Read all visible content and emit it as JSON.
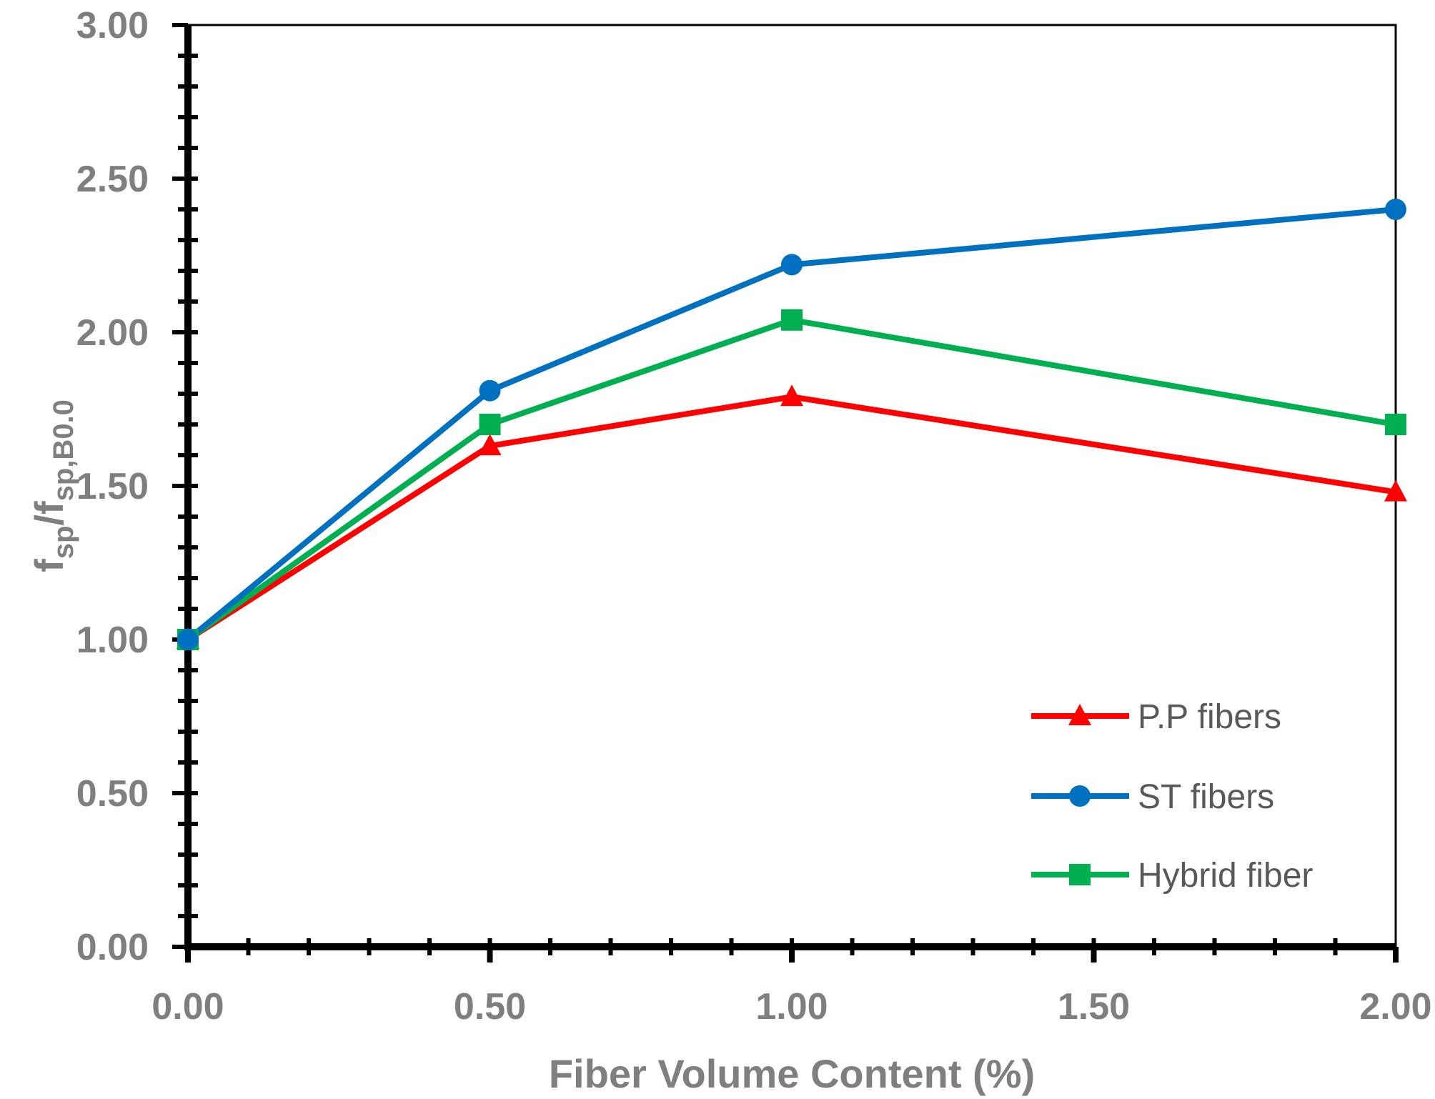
{
  "chart_data": {
    "type": "line",
    "categories": [
      "0.00",
      "0.50",
      "1.00",
      "1.50",
      "2.00"
    ],
    "x": [
      0.0,
      0.5,
      1.0,
      2.0
    ],
    "series": [
      {
        "name": "P.P fibers",
        "values": [
          1.0,
          1.63,
          1.79,
          1.48
        ],
        "color": "#ff0000",
        "marker": "triangle"
      },
      {
        "name": "ST fibers",
        "values": [
          1.0,
          1.81,
          2.22,
          2.4
        ],
        "color": "#0070c0",
        "marker": "circle"
      },
      {
        "name": "Hybrid fiber",
        "values": [
          1.0,
          1.7,
          2.04,
          1.7
        ],
        "color": "#00b050",
        "marker": "square"
      }
    ],
    "yticks": [
      "0.00",
      "0.50",
      "1.00",
      "1.50",
      "2.00",
      "2.50",
      "3.00"
    ],
    "ylim": [
      0,
      3
    ],
    "xlabel": "Fiber Volume Content (%)",
    "ylabel": {
      "main": "f",
      "sub1": "sp",
      "slash": "/f",
      "sub2": "sp,B0.0"
    },
    "legend_position": "bottom-right",
    "grid": false
  }
}
